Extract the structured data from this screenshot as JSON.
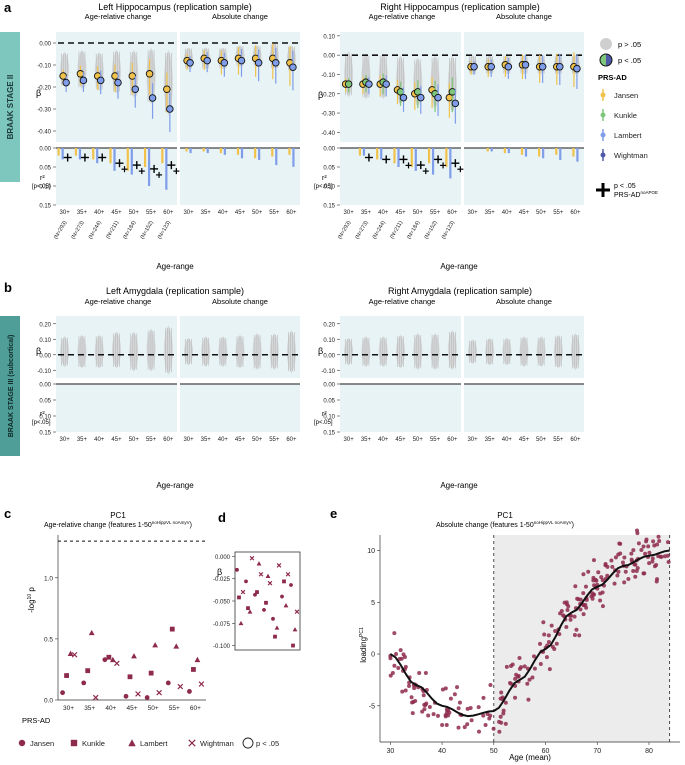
{
  "panels": {
    "a": {
      "letter": "a",
      "stage_label": "BRAAK STAGE II",
      "left_title": "Left Hippocampus (replication sample)",
      "right_title": "Right Hippocampus (replication sample)",
      "sub_relative": "Age-relative change",
      "sub_absolute": "Absolute change",
      "y_label": "β",
      "r2_label": "r²",
      "r2_sub": "[p<.05]",
      "x_label": "Age-range",
      "age_ranges": [
        "30+",
        "35+",
        "40+",
        "45+",
        "50+",
        "55+",
        "60+"
      ],
      "n_labels": [
        "(N=293)",
        "(N=273)",
        "(N=244)",
        "(N=211)",
        "(N=184)",
        "(N=152)",
        "(N=123)"
      ],
      "beta_ticks_left": [
        "0.00",
        "-0.10",
        "-0.20",
        "-0.30",
        "-0.40"
      ],
      "beta_ticks_right": [
        "0.10",
        "0.00",
        "-0.10",
        "-0.20",
        "-0.30",
        "-0.40"
      ],
      "r2_ticks": [
        "0.00",
        "0.05",
        "0.10",
        "0.15"
      ]
    },
    "b": {
      "letter": "b",
      "stage_label": "BRAAK STAGE III (subcortical)",
      "left_title": "Left Amygdala (replication sample)",
      "right_title": "Right Amygdala (replication sample)",
      "sub_relative": "Age-relative change",
      "sub_absolute": "Absolute change",
      "y_label": "β",
      "r2_label": "r²",
      "r2_sub": "[p<.05]",
      "x_label": "Age-range",
      "age_ranges": [
        "30+",
        "35+",
        "40+",
        "45+",
        "50+",
        "55+",
        "60+"
      ],
      "beta_ticks_left": [
        "0.20",
        "0.10",
        "0.00",
        "-0.10"
      ],
      "beta_ticks_right": [
        "0.20",
        "0.10",
        "0.00",
        "-0.10"
      ],
      "r2_ticks": [
        "0.00",
        "0.05",
        "0.10",
        "0.15"
      ]
    },
    "c": {
      "letter": "c",
      "title": "PC1",
      "subtitle": "Age-relative change (features 1-50",
      "subtitle_sup": "noHippVL noAmyV",
      "subtitle_end": ")",
      "y_label": "-log",
      "y_label_sup": "10",
      "y_label_end": " p",
      "y_ticks": [
        "1.0",
        "0.5",
        "0.0"
      ],
      "age_ranges": [
        "30+",
        "35+",
        "40+",
        "45+",
        "50+",
        "55+",
        "60+"
      ],
      "legend_title": "PRS-AD",
      "legend": [
        "Jansen",
        "Kunkle",
        "Lambert",
        "Wightman",
        "p < .05"
      ]
    },
    "d": {
      "letter": "d",
      "y_label": "β",
      "y_ticks": [
        "0.000",
        "-0.025",
        "-0.050",
        "-0.075",
        "-0.100"
      ]
    },
    "e": {
      "letter": "e",
      "title": "PC1",
      "subtitle": "Absolute change (features 1-50",
      "subtitle_sup": "noHippVL noAmyV",
      "subtitle_end": ")",
      "y_label": "loading",
      "y_label_sup": "PC1",
      "x_label": "Age (mean)",
      "y_ticks": [
        "10",
        "5",
        "0",
        "-5"
      ],
      "x_ticks": [
        "30",
        "40",
        "50",
        "60",
        "70",
        "80"
      ]
    }
  },
  "legend_right": {
    "p_ns": "p > .05",
    "p_sig": "p < .05",
    "prs_title": "PRS-AD",
    "items": [
      "Jansen",
      "Kunkle",
      "Lambert",
      "Wightman"
    ],
    "cross_label": "p < .05",
    "cross_label2": "PRS-AD",
    "cross_sup": "noAPOE"
  },
  "colors": {
    "panel_bg": "#e8f3f6",
    "jansen": "#f0c24b",
    "kunkle": "#7fc77a",
    "lambert": "#7f9de8",
    "wightman": "#4e5aa8",
    "grey": "#cfcfcf",
    "maroon": "#8e2b4c",
    "teal": "#7ec7bf",
    "teal_dark": "#4f9e98"
  },
  "chart_data": [
    {
      "type": "scatter",
      "id": "a-left-relative",
      "title": "Left Hippocampus (replication sample) — Age-relative change",
      "categories": [
        "30+",
        "35+",
        "40+",
        "45+",
        "50+",
        "55+",
        "60+"
      ],
      "series": [
        {
          "name": "Jansen",
          "values": [
            -0.15,
            -0.14,
            -0.15,
            -0.15,
            -0.15,
            -0.14,
            -0.21
          ]
        },
        {
          "name": "Lambert",
          "values": [
            -0.18,
            -0.17,
            -0.17,
            -0.18,
            -0.21,
            -0.25,
            -0.3
          ]
        }
      ],
      "ylim": [
        -0.45,
        0.05
      ],
      "ylabel": "β"
    },
    {
      "type": "scatter",
      "id": "a-left-absolute",
      "title": "Left Hippocampus (replication sample) — Absolute change",
      "categories": [
        "30+",
        "35+",
        "40+",
        "45+",
        "50+",
        "55+",
        "60+"
      ],
      "series": [
        {
          "name": "Jansen",
          "values": [
            -0.08,
            -0.07,
            -0.08,
            -0.07,
            -0.07,
            -0.07,
            -0.09
          ]
        },
        {
          "name": "Lambert",
          "values": [
            -0.09,
            -0.08,
            -0.09,
            -0.08,
            -0.09,
            -0.09,
            -0.11
          ]
        }
      ],
      "ylim": [
        -0.45,
        0.05
      ]
    },
    {
      "type": "scatter",
      "id": "a-right-relative",
      "title": "Right Hippocampus (replication sample) — Age-relative change",
      "categories": [
        "30+",
        "35+",
        "40+",
        "45+",
        "50+",
        "55+",
        "60+"
      ],
      "series": [
        {
          "name": "Jansen",
          "values": [
            -0.15,
            -0.15,
            -0.15,
            -0.18,
            -0.2,
            -0.18,
            -0.22
          ]
        },
        {
          "name": "Kunkle",
          "values": [
            -0.15,
            -0.14,
            -0.14,
            -0.19,
            -0.19,
            -0.2,
            -0.19
          ]
        },
        {
          "name": "Lambert",
          "values": [
            null,
            -0.15,
            -0.15,
            -0.22,
            -0.22,
            -0.22,
            -0.25
          ]
        }
      ],
      "ylim": [
        -0.45,
        0.12
      ]
    },
    {
      "type": "scatter",
      "id": "a-right-absolute",
      "title": "Right Hippocampus (replication sample) — Absolute change",
      "categories": [
        "30+",
        "35+",
        "40+",
        "45+",
        "50+",
        "55+",
        "60+"
      ],
      "series": [
        {
          "name": "Jansen",
          "values": [
            -0.06,
            -0.06,
            -0.05,
            -0.05,
            -0.06,
            -0.06,
            -0.06
          ]
        },
        {
          "name": "Lambert",
          "values": [
            -0.06,
            -0.06,
            -0.06,
            -0.05,
            -0.06,
            -0.06,
            -0.07
          ]
        }
      ],
      "ylim": [
        -0.45,
        0.12
      ]
    },
    {
      "type": "bar",
      "id": "a-left-r2",
      "title": "Left Hippocampus r² (p<.05)",
      "categories": [
        "30+",
        "35+",
        "40+",
        "45+",
        "50+",
        "55+",
        "60+"
      ],
      "series": [
        {
          "name": "Jansen",
          "values": [
            0.02,
            0.02,
            0.03,
            0.04,
            0.06,
            0.05,
            0.04
          ]
        },
        {
          "name": "Lambert",
          "values": [
            0.03,
            0.03,
            0.04,
            0.06,
            0.07,
            0.1,
            0.11
          ]
        }
      ],
      "crosses_relative": [
        0.025,
        0.025,
        0.025,
        0.04,
        0.045,
        0.055,
        0.045
      ],
      "ylim": [
        0,
        0.15
      ]
    },
    {
      "type": "bar",
      "id": "a-right-r2",
      "title": "Right Hippocampus r² (p<.05)",
      "categories": [
        "30+",
        "35+",
        "40+",
        "45+",
        "50+",
        "55+",
        "60+"
      ],
      "series": [
        {
          "name": "Jansen",
          "values": [
            0,
            0.02,
            0.03,
            0.04,
            0.05,
            0.04,
            0.05
          ]
        },
        {
          "name": "Lambert",
          "values": [
            0,
            0.02,
            0.03,
            0.05,
            0.06,
            0.07,
            0.08
          ]
        }
      ],
      "crosses_relative": [
        null,
        0.025,
        0.03,
        0.03,
        0.045,
        0.03,
        0.04
      ],
      "ylim": [
        0,
        0.15
      ]
    },
    {
      "type": "scatter",
      "id": "b-left",
      "title": "Left Amygdala (replication sample)",
      "categories": [
        "30+",
        "35+",
        "40+",
        "45+",
        "50+",
        "55+",
        "60+"
      ],
      "series": [
        {
          "name": "all (p > .05)",
          "values": [
            0.02,
            0.02,
            0.02,
            0.03,
            0.02,
            0.03,
            0.03
          ]
        }
      ],
      "ylim": [
        -0.15,
        0.25
      ]
    },
    {
      "type": "scatter",
      "id": "b-right",
      "title": "Right Amygdala (replication sample)",
      "categories": [
        "30+",
        "35+",
        "40+",
        "45+",
        "50+",
        "55+",
        "60+"
      ],
      "series": [
        {
          "name": "all (p > .05)",
          "values": [
            0.0,
            0.0,
            0.0,
            0.0,
            0.0,
            0.0,
            0.0
          ]
        }
      ],
      "ylim": [
        -0.15,
        0.25
      ]
    },
    {
      "type": "scatter",
      "id": "c",
      "title": "PC1 Age-relative change",
      "categories": [
        "30+",
        "35+",
        "40+",
        "45+",
        "50+",
        "55+",
        "60+"
      ],
      "series": [
        {
          "name": "Jansen",
          "values": [
            0.06,
            0.14,
            0.33,
            0.03,
            0.02,
            0.14,
            0.07
          ]
        },
        {
          "name": "Kunkle",
          "values": [
            0.2,
            0.24,
            0.35,
            0.19,
            0.22,
            0.58,
            0.25
          ]
        },
        {
          "name": "Lambert",
          "values": [
            0.38,
            0.55,
            0.33,
            0.36,
            0.45,
            0.44,
            0.33
          ]
        },
        {
          "name": "Wightman",
          "values": [
            0.37,
            0.02,
            0.3,
            0.05,
            0.06,
            0.11,
            0.13
          ]
        }
      ],
      "threshold": 1.3,
      "ylim": [
        0,
        1.35
      ],
      "ylabel": "-log10 p"
    },
    {
      "type": "scatter",
      "id": "e",
      "title": "PC1 Absolute change",
      "xlabel": "Age (mean)",
      "ylabel": "loading PC1",
      "xlim": [
        28,
        86
      ],
      "ylim": [
        -8.5,
        11.5
      ],
      "shaded_region": [
        50,
        84
      ],
      "trend": [
        [
          30,
          0
        ],
        [
          35,
          -3
        ],
        [
          40,
          -5
        ],
        [
          45,
          -6
        ],
        [
          50,
          -5.5
        ],
        [
          55,
          -2.5
        ],
        [
          60,
          0.5
        ],
        [
          65,
          4
        ],
        [
          70,
          6.5
        ],
        [
          75,
          8.5
        ],
        [
          80,
          9.5
        ],
        [
          84,
          10
        ]
      ]
    }
  ]
}
